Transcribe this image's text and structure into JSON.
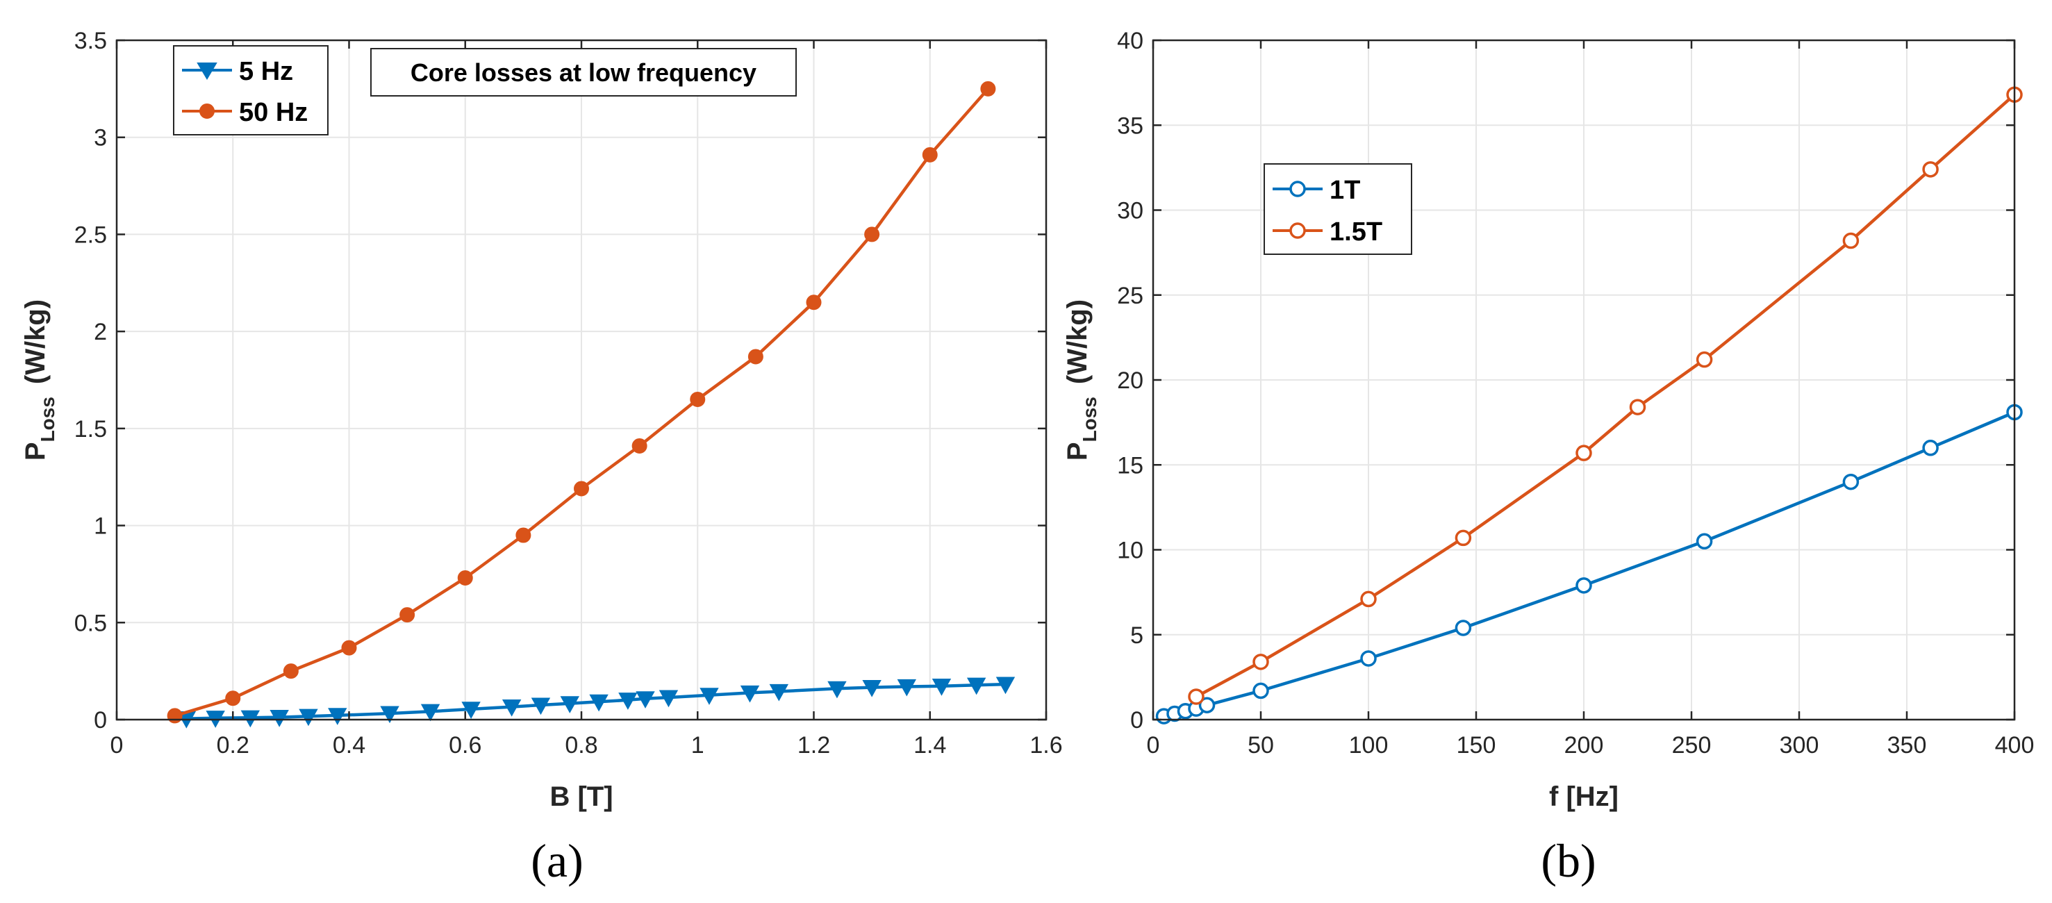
{
  "colors": {
    "blue": "#0072BD",
    "orange": "#D95319",
    "axis": "#262626",
    "grid": "#e6e6e6"
  },
  "chart_data": [
    {
      "id": "a",
      "type": "line",
      "caption": "(a)",
      "annotation": "Core losses at low frequency",
      "xlabel": "B [T]",
      "ylabel_main": "P",
      "ylabel_sub": "Loss",
      "ylabel_unit": "(W/kg)",
      "xlim": [
        0,
        1.6
      ],
      "ylim": [
        0,
        3.5
      ],
      "xticks": [
        0,
        0.2,
        0.4,
        0.6,
        0.8,
        1,
        1.2,
        1.4,
        1.6
      ],
      "xtick_labels": [
        "0",
        "0.2",
        "0.4",
        "0.6",
        "0.8",
        "1",
        "1.2",
        "1.4",
        "1.6"
      ],
      "yticks": [
        0,
        0.5,
        1,
        1.5,
        2,
        2.5,
        3,
        3.5
      ],
      "ytick_labels": [
        "0",
        "0.5",
        "1",
        "1.5",
        "2",
        "2.5",
        "3",
        "3.5"
      ],
      "legend_position": "top-left",
      "series": [
        {
          "name": "5 Hz",
          "color": "#0072BD",
          "marker": "triangle-down",
          "x": [
            0.12,
            0.17,
            0.23,
            0.28,
            0.33,
            0.38,
            0.47,
            0.54,
            0.61,
            0.68,
            0.73,
            0.78,
            0.83,
            0.88,
            0.91,
            0.95,
            1.02,
            1.09,
            1.14,
            1.24,
            1.3,
            1.36,
            1.42,
            1.48,
            1.53
          ],
          "y": [
            0.005,
            0.008,
            0.01,
            0.012,
            0.017,
            0.022,
            0.032,
            0.042,
            0.054,
            0.066,
            0.075,
            0.083,
            0.092,
            0.101,
            0.108,
            0.114,
            0.126,
            0.138,
            0.145,
            0.16,
            0.166,
            0.17,
            0.173,
            0.178,
            0.182
          ]
        },
        {
          "name": "50 Hz",
          "color": "#D95319",
          "marker": "circle-filled",
          "x": [
            0.1,
            0.2,
            0.3,
            0.4,
            0.5,
            0.6,
            0.7,
            0.8,
            0.9,
            1.0,
            1.1,
            1.2,
            1.3,
            1.4,
            1.5
          ],
          "y": [
            0.02,
            0.11,
            0.25,
            0.37,
            0.54,
            0.73,
            0.95,
            1.19,
            1.41,
            1.65,
            1.87,
            2.15,
            2.5,
            2.91,
            3.25
          ]
        }
      ]
    },
    {
      "id": "b",
      "type": "line",
      "caption": "(b)",
      "xlabel": "f [Hz]",
      "ylabel_main": "P",
      "ylabel_sub": "Loss",
      "ylabel_unit": "(W/kg)",
      "xlim": [
        0,
        400
      ],
      "ylim": [
        0,
        40
      ],
      "xticks": [
        0,
        50,
        100,
        150,
        200,
        250,
        300,
        350,
        400
      ],
      "xtick_labels": [
        "0",
        "50",
        "100",
        "150",
        "200",
        "250",
        "300",
        "350",
        "400"
      ],
      "yticks": [
        0,
        5,
        10,
        15,
        20,
        25,
        30,
        35,
        40
      ],
      "ytick_labels": [
        "0",
        "5",
        "10",
        "15",
        "20",
        "25",
        "30",
        "35",
        "40"
      ],
      "legend_position": "upper-left",
      "series": [
        {
          "name": "1T",
          "color": "#0072BD",
          "marker": "circle-open",
          "x": [
            5,
            10,
            15,
            20,
            25,
            50,
            100,
            144,
            200,
            256,
            324,
            361,
            400
          ],
          "y": [
            0.2,
            0.35,
            0.5,
            0.65,
            0.85,
            1.7,
            3.6,
            5.4,
            7.9,
            10.5,
            14.0,
            16.0,
            18.1
          ]
        },
        {
          "name": "1.5T",
          "color": "#D95319",
          "marker": "circle-open",
          "x": [
            20,
            50,
            100,
            144,
            200,
            225,
            256,
            324,
            361,
            400
          ],
          "y": [
            1.35,
            3.4,
            7.1,
            10.7,
            15.7,
            18.4,
            21.2,
            28.2,
            32.4,
            36.8
          ]
        }
      ]
    }
  ]
}
